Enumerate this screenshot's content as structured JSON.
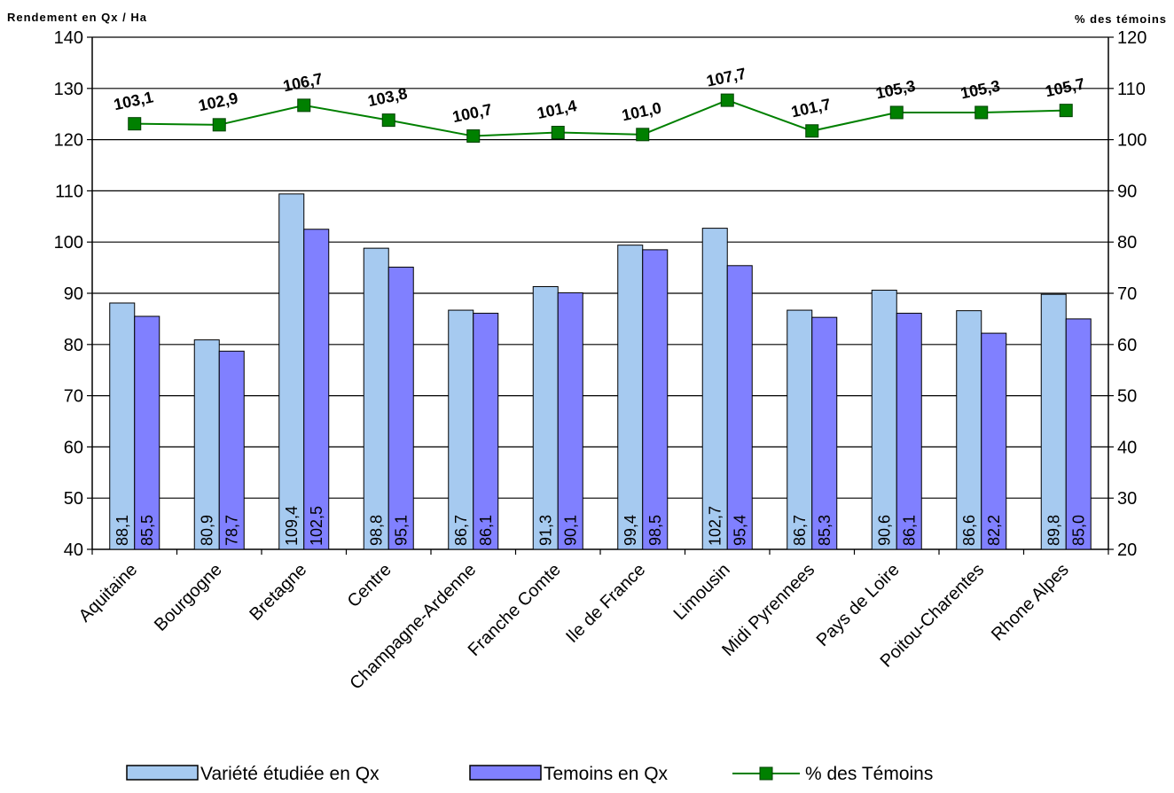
{
  "chart_data": {
    "type": "bar",
    "ylabel": "Rendement en Qx / Ha",
    "y2label": "% des témoins",
    "ylim": [
      40,
      140
    ],
    "y2lim": [
      20,
      120
    ],
    "yticks": [
      "40",
      "50",
      "60",
      "70",
      "80",
      "90",
      "100",
      "110",
      "120",
      "130",
      "140"
    ],
    "y2ticks": [
      "20",
      "30",
      "40",
      "50",
      "60",
      "70",
      "80",
      "90",
      "100",
      "110",
      "120"
    ],
    "grid": "horizontal",
    "legend_position": "bottom",
    "categories": [
      "Aquitaine",
      "Bourgogne",
      "Bretagne",
      "Centre",
      "Champagne-Ardenne",
      "Franche Comte",
      "Ile de France",
      "Limousin",
      "Midi Pyrennees",
      "Pays de Loire",
      "Poitou-Charentes",
      "Rhone Alpes"
    ],
    "series": [
      {
        "name": "Variété étudiée en Qx",
        "type": "bar",
        "axis": "left",
        "color": "#a6caf0",
        "values": [
          88.1,
          80.9,
          109.4,
          98.8,
          86.7,
          91.3,
          99.4,
          102.7,
          86.7,
          90.6,
          86.6,
          89.8
        ],
        "labels": [
          "88,1",
          "80,9",
          "109,4",
          "98,8",
          "86,7",
          "91,3",
          "99,4",
          "102,7",
          "86,7",
          "90,6",
          "86,6",
          "89,8"
        ]
      },
      {
        "name": "Temoins en Qx",
        "type": "bar",
        "axis": "left",
        "color": "#8080ff",
        "values": [
          85.5,
          78.7,
          102.5,
          95.1,
          86.1,
          90.1,
          98.5,
          95.4,
          85.3,
          86.1,
          82.2,
          85.0
        ],
        "labels": [
          "85,5",
          "78,7",
          "102,5",
          "95,1",
          "86,1",
          "90,1",
          "98,5",
          "95,4",
          "85,3",
          "86,1",
          "82,2",
          "85,0"
        ]
      },
      {
        "name": "% des Témoins",
        "type": "line",
        "axis": "right",
        "color": "#008000",
        "values": [
          103.1,
          102.9,
          106.7,
          103.8,
          100.7,
          101.4,
          101.0,
          107.7,
          101.7,
          105.3,
          105.3,
          105.7
        ],
        "labels": [
          "103,1",
          "102,9",
          "106,7",
          "103,8",
          "100,7",
          "101,4",
          "101,0",
          "107,7",
          "101,7",
          "105,3",
          "105,3",
          "105,7"
        ]
      }
    ]
  }
}
